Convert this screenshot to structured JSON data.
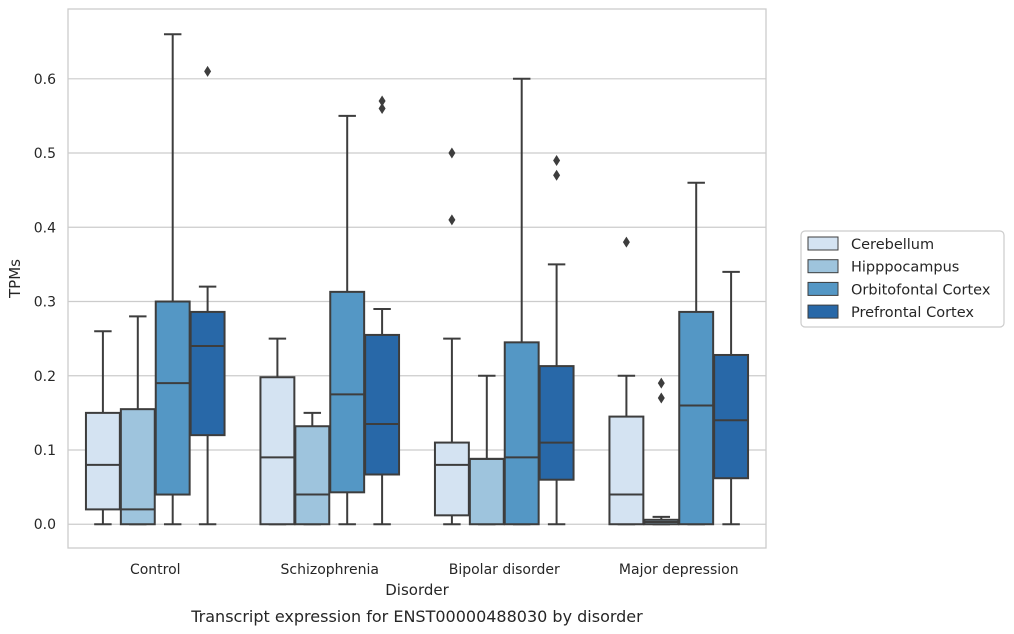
{
  "caption": "Transcript expression for ENST00000488030 by disorder",
  "chart_data": {
    "type": "box",
    "title": "",
    "xlabel": "Disorder",
    "ylabel": "TPMs",
    "ylim": [
      -0.032,
      0.694
    ],
    "yticks": [
      "0.0",
      "0.1",
      "0.2",
      "0.3",
      "0.4",
      "0.5",
      "0.6"
    ],
    "ytick_values": [
      0,
      0.1,
      0.2,
      0.3,
      0.4,
      0.5,
      0.6
    ],
    "grid": "horizontal",
    "legend_position": "right",
    "categories": [
      "Control",
      "Schizophrenia",
      "Bipolar disorder",
      "Major depression"
    ],
    "series": [
      {
        "name": "Cerebellum",
        "color": "#d4e3f2",
        "boxes": [
          {
            "whisker_low": 0,
            "q1": 0.02,
            "median": 0.08,
            "q3": 0.15,
            "whisker_high": 0.26,
            "outliers": []
          },
          {
            "whisker_low": 0,
            "q1": 0,
            "median": 0.09,
            "q3": 0.198,
            "whisker_high": 0.25,
            "outliers": []
          },
          {
            "whisker_low": 0,
            "q1": 0.012,
            "median": 0.08,
            "q3": 0.11,
            "whisker_high": 0.25,
            "outliers": [
              0.41,
              0.5
            ]
          },
          {
            "whisker_low": 0,
            "q1": 0,
            "median": 0.04,
            "q3": 0.145,
            "whisker_high": 0.2,
            "outliers": [
              0.38
            ]
          }
        ]
      },
      {
        "name": "Hipppocampus",
        "color": "#9ec4dd",
        "boxes": [
          {
            "whisker_low": 0,
            "q1": 0,
            "median": 0.02,
            "q3": 0.155,
            "whisker_high": 0.28,
            "outliers": []
          },
          {
            "whisker_low": 0,
            "q1": 0,
            "median": 0.04,
            "q3": 0.132,
            "whisker_high": 0.15,
            "outliers": []
          },
          {
            "whisker_low": 0,
            "q1": 0,
            "median": 0.088,
            "q3": 0.088,
            "whisker_high": 0.2,
            "outliers": []
          },
          {
            "whisker_low": 0,
            "q1": 0,
            "median": 0.003,
            "q3": 0.006,
            "whisker_high": 0.01,
            "outliers": [
              0.17,
              0.19
            ]
          }
        ]
      },
      {
        "name": "Orbitofontal Cortex",
        "color": "#5497c5",
        "boxes": [
          {
            "whisker_low": 0,
            "q1": 0.04,
            "median": 0.19,
            "q3": 0.3,
            "whisker_high": 0.66,
            "outliers": []
          },
          {
            "whisker_low": 0,
            "q1": 0.043,
            "median": 0.175,
            "q3": 0.313,
            "whisker_high": 0.55,
            "outliers": []
          },
          {
            "whisker_low": 0,
            "q1": 0,
            "median": 0.09,
            "q3": 0.245,
            "whisker_high": 0.6,
            "outliers": []
          },
          {
            "whisker_low": 0,
            "q1": 0,
            "median": 0.16,
            "q3": 0.286,
            "whisker_high": 0.46,
            "outliers": []
          }
        ]
      },
      {
        "name": "Prefrontal Cortex",
        "color": "#2868a8",
        "boxes": [
          {
            "whisker_low": 0,
            "q1": 0.12,
            "median": 0.24,
            "q3": 0.286,
            "whisker_high": 0.32,
            "outliers": [
              0.61
            ]
          },
          {
            "whisker_low": 0,
            "q1": 0.067,
            "median": 0.135,
            "q3": 0.255,
            "whisker_high": 0.29,
            "outliers": [
              0.56,
              0.57
            ]
          },
          {
            "whisker_low": 0,
            "q1": 0.06,
            "median": 0.11,
            "q3": 0.213,
            "whisker_high": 0.35,
            "outliers": [
              0.47,
              0.49
            ]
          },
          {
            "whisker_low": 0,
            "q1": 0.062,
            "median": 0.14,
            "q3": 0.228,
            "whisker_high": 0.34,
            "outliers": []
          }
        ]
      }
    ]
  }
}
